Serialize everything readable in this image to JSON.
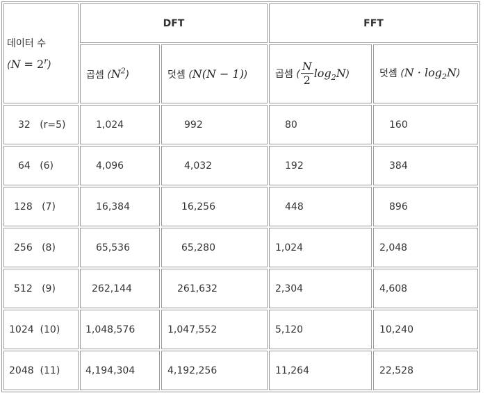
{
  "header": {
    "data_count_label": "데이터 수",
    "data_count_formula": {
      "lhs": "N",
      "eq": " = ",
      "base": "2",
      "exp": "r"
    },
    "dft_label": "DFT",
    "fft_label": "FFT",
    "mul_label": "곱셈",
    "add_label": "덧셈",
    "dft_mul_formula": {
      "base": "N",
      "exp": "2"
    },
    "dft_add_formula": "N(N − 1)",
    "fft_mul_formula": {
      "num": "N",
      "den": "2",
      "rest": "log",
      "sub": "2",
      "tail": "N"
    },
    "fft_add_formula": {
      "pre": "N · log",
      "sub": "2",
      "tail": "N"
    }
  },
  "rows": [
    {
      "n": "32",
      "r": "(r=5)",
      "dft_mul": "1,024",
      "dft_add": "992",
      "fft_mul": "80",
      "fft_add": "160"
    },
    {
      "n": "64",
      "r": "(6)",
      "dft_mul": "4,096",
      "dft_add": "4,032",
      "fft_mul": "192",
      "fft_add": "384"
    },
    {
      "n": "128",
      "r": "(7)",
      "dft_mul": "16,384",
      "dft_add": "16,256",
      "fft_mul": "448",
      "fft_add": "896"
    },
    {
      "n": "256",
      "r": "(8)",
      "dft_mul": "65,536",
      "dft_add": "65,280",
      "fft_mul": "1,024",
      "fft_add": "2,048"
    },
    {
      "n": "512",
      "r": "(9)",
      "dft_mul": "262,144",
      "dft_add": "261,632",
      "fft_mul": "2,304",
      "fft_add": "4,608"
    },
    {
      "n": "1024",
      "r": "(10)",
      "dft_mul": "1,048,576",
      "dft_add": "1,047,552",
      "fft_mul": "5,120",
      "fft_add": "10,240"
    },
    {
      "n": "2048",
      "r": "(11)",
      "dft_mul": "4,194,304",
      "dft_add": "4,192,256",
      "fft_mul": "11,264",
      "fft_add": "22,528"
    }
  ]
}
